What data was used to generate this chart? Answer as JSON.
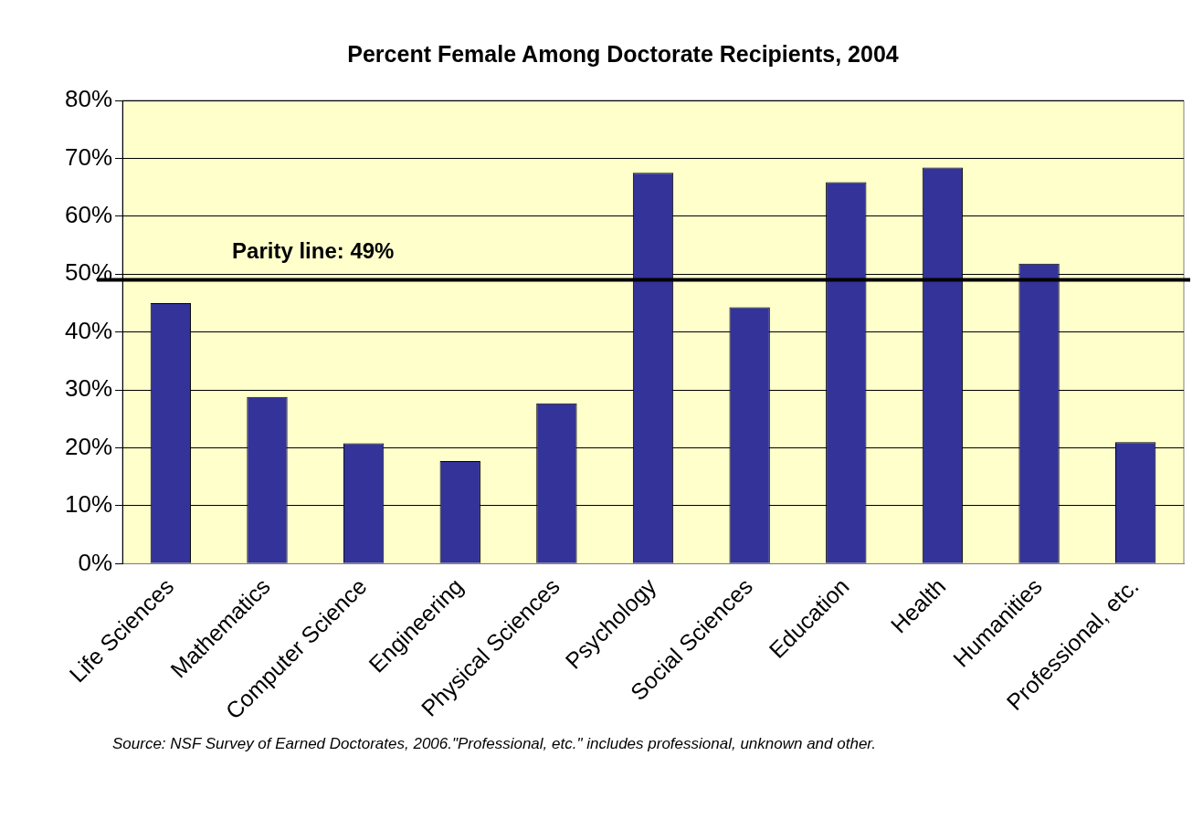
{
  "chart_data": {
    "type": "bar",
    "title": "Percent Female Among Doctorate Recipients, 2004",
    "categories": [
      "Life Sciences",
      "Mathematics",
      "Computer Science",
      "Engineering",
      "Physical Sciences",
      "Psychology",
      "Social Sciences",
      "Education",
      "Health",
      "Humanities",
      "Professional, etc."
    ],
    "values": [
      45,
      28.8,
      20.8,
      17.7,
      27.7,
      67.5,
      44.3,
      65.9,
      68.4,
      51.8,
      21
    ],
    "color": "#333399",
    "ylim": [
      0,
      80
    ],
    "yticks": [
      {
        "value": 0,
        "label": "0%"
      },
      {
        "value": 10,
        "label": "10%"
      },
      {
        "value": 20,
        "label": "20%"
      },
      {
        "value": 30,
        "label": "30%"
      },
      {
        "value": 40,
        "label": "40%"
      },
      {
        "value": 50,
        "label": "50%"
      },
      {
        "value": 60,
        "label": "60%"
      },
      {
        "value": 70,
        "label": "70%"
      },
      {
        "value": 80,
        "label": "80%"
      }
    ],
    "grid": "y",
    "legend": false,
    "ref_lines": [
      {
        "axis": "y",
        "value": 49,
        "label": "Parity line: 49%",
        "color": "#000000"
      }
    ],
    "annotations": [
      "Source: NSF Survey of Earned Doctorates, 2006.\"Professional, etc.\" includes professional, unknown and other."
    ]
  }
}
